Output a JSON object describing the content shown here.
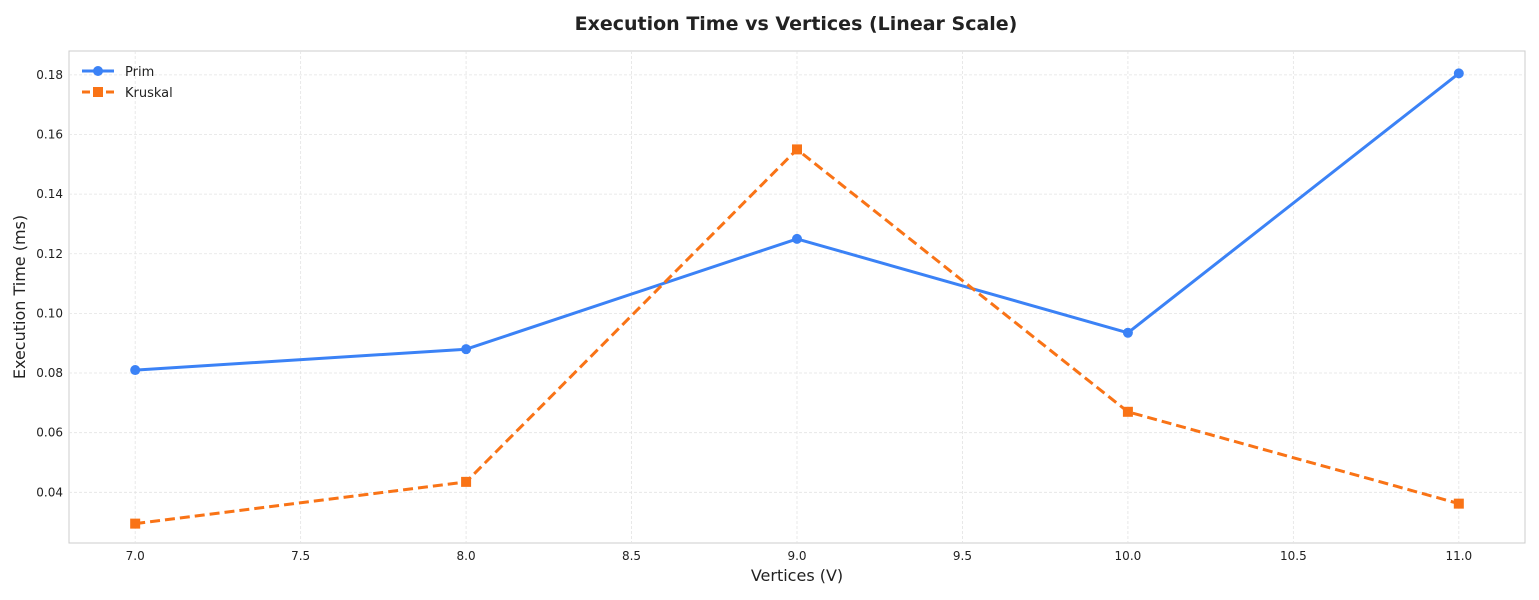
{
  "chart_data": {
    "type": "line",
    "title": "Execution Time vs Vertices (Linear Scale)",
    "xlabel": "Vertices (V)",
    "ylabel": "Execution Time (ms)",
    "x": [
      7,
      8,
      9,
      10,
      11
    ],
    "xlim": [
      6.8,
      11.2
    ],
    "ylim": [
      0.023,
      0.188
    ],
    "x_ticks": [
      "7.0",
      "7.5",
      "8.0",
      "8.5",
      "9.0",
      "9.5",
      "10.0",
      "10.5",
      "11.0"
    ],
    "y_ticks": [
      "0.04",
      "0.06",
      "0.08",
      "0.10",
      "0.12",
      "0.14",
      "0.16",
      "0.18"
    ],
    "grid": true,
    "legend_position": "top-left",
    "series": [
      {
        "name": "Prim",
        "values": [
          0.081,
          0.088,
          0.125,
          0.0935,
          0.1805
        ],
        "color": "#3b82f6",
        "line_style": "solid",
        "marker": "circle"
      },
      {
        "name": "Kruskal",
        "values": [
          0.0295,
          0.0435,
          0.155,
          0.067,
          0.0362
        ],
        "color": "#f97316",
        "line_style": "dashed",
        "marker": "square"
      }
    ]
  }
}
